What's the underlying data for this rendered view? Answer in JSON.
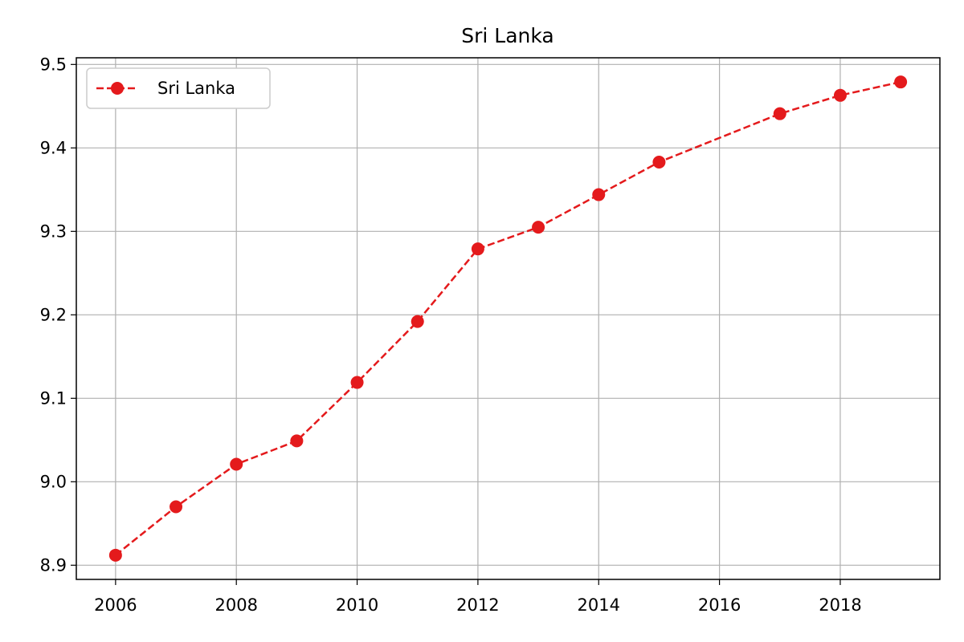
{
  "chart_data": {
    "type": "line",
    "title": "Sri Lanka",
    "xlabel": "",
    "ylabel": "",
    "x": [
      2006,
      2007,
      2008,
      2009,
      2010,
      2011,
      2012,
      2013,
      2014,
      2015,
      2017,
      2018,
      2019
    ],
    "series": [
      {
        "name": "Sri Lanka",
        "values": [
          8.912,
          8.97,
          9.021,
          9.049,
          9.119,
          9.192,
          9.279,
          9.305,
          9.344,
          9.383,
          9.441,
          9.463,
          9.479
        ],
        "color": "#e41a1c",
        "line_style": "dashed",
        "marker": "circle"
      }
    ],
    "xlim": [
      2005.35,
      2019.65
    ],
    "ylim": [
      8.883,
      9.508
    ],
    "xticks": [
      2006,
      2008,
      2010,
      2012,
      2014,
      2016,
      2018
    ],
    "yticks": [
      8.9,
      9.0,
      9.1,
      9.2,
      9.3,
      9.4,
      9.5
    ],
    "ytick_labels": [
      "8.9",
      "9.0",
      "9.1",
      "9.2",
      "9.3",
      "9.4",
      "9.5"
    ],
    "grid": true,
    "legend_position": "top-left"
  }
}
